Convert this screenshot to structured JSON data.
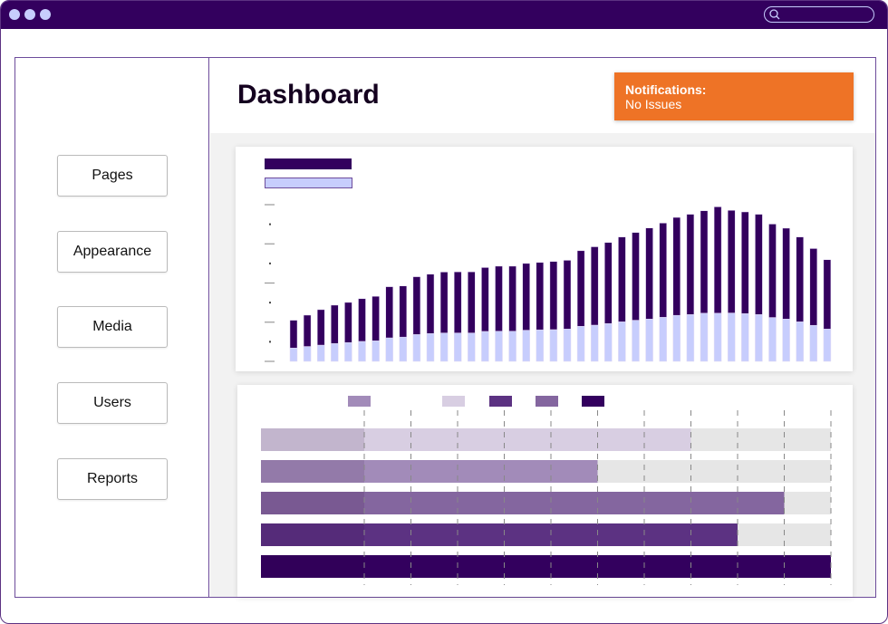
{
  "window": {
    "search_placeholder": ""
  },
  "sidebar": {
    "items": [
      {
        "label": "Pages"
      },
      {
        "label": "Appearance"
      },
      {
        "label": "Media"
      },
      {
        "label": "Users"
      },
      {
        "label": "Reports"
      }
    ]
  },
  "header": {
    "title": "Dashboard",
    "notification": {
      "title": "Notifications:",
      "message": "No Issues"
    }
  },
  "colors": {
    "brand": "#33005e",
    "accent": "#ee7326",
    "light": "#c7cdfd"
  },
  "chart_data": [
    {
      "type": "bar",
      "stacked": true,
      "title": "",
      "xlabel": "",
      "ylabel": "",
      "ylim": [
        0,
        8
      ],
      "grid": false,
      "series": [
        {
          "name": "",
          "color": "#c7cdfd",
          "values": [
            0.68,
            0.76,
            0.83,
            0.91,
            0.96,
            1.02,
            1.05,
            1.2,
            1.24,
            1.37,
            1.42,
            1.45,
            1.45,
            1.45,
            1.53,
            1.54,
            1.54,
            1.59,
            1.61,
            1.62,
            1.65,
            1.79,
            1.85,
            1.93,
            2.02,
            2.1,
            2.16,
            2.25,
            2.35,
            2.39,
            2.46,
            2.46,
            2.47,
            2.44,
            2.39,
            2.24,
            2.16,
            2.02,
            1.84,
            1.65
          ]
        },
        {
          "name": "",
          "color": "#33005e",
          "values": [
            1.42,
            1.6,
            1.81,
            1.96,
            2.05,
            2.18,
            2.27,
            2.61,
            2.61,
            2.95,
            3.03,
            3.11,
            3.12,
            3.12,
            3.26,
            3.32,
            3.32,
            3.41,
            3.44,
            3.48,
            3.51,
            3.86,
            4.0,
            4.14,
            4.33,
            4.48,
            4.65,
            4.81,
            5.0,
            5.12,
            5.23,
            5.43,
            5.24,
            5.19,
            5.12,
            4.77,
            4.64,
            4.33,
            3.92,
            3.54
          ]
        }
      ]
    },
    {
      "type": "bar",
      "orientation": "horizontal",
      "title": "",
      "xlim": [
        0,
        10
      ],
      "grid": true,
      "bars": [
        {
          "value": 7,
          "color": "#d8cee2"
        },
        {
          "value": 5,
          "color": "#a28bb9"
        },
        {
          "value": 9,
          "color": "#84669f"
        },
        {
          "value": 8,
          "color": "#5c3282"
        },
        {
          "value": 10,
          "color": "#33005e"
        }
      ],
      "legend_colors": [
        "#a28bb9",
        "#d8cee2",
        "#5c3282",
        "#84669f",
        "#33005e"
      ]
    }
  ]
}
